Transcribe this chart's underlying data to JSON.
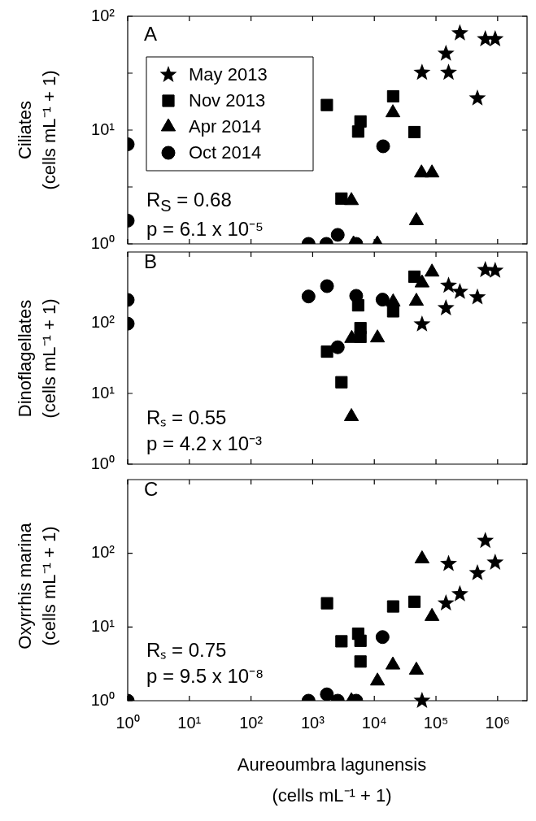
{
  "chart_data": [
    {
      "type": "scatter",
      "ylabel": "Ciliates\n(cells mL⁻¹ + 1)",
      "log": "xy",
      "legend": "top left",
      "tick_labels": "y",
      "xlim": [
        1,
        3000000
      ],
      "ylim": [
        1,
        100
      ],
      "xticks": [
        {
          "value": 1,
          "label": null
        },
        {
          "value": 10,
          "label": null
        },
        {
          "value": 100,
          "label": null
        },
        {
          "value": 1000,
          "label": null
        },
        {
          "value": 10000,
          "label": null
        },
        {
          "value": 100000,
          "label": null
        },
        {
          "value": 1000000,
          "label": null
        }
      ],
      "yticks": [
        {
          "value": 1,
          "label": "10⁰"
        },
        {
          "value": 3.162,
          "label": null
        },
        {
          "value": 10,
          "label": "10¹"
        },
        {
          "value": 31.62,
          "label": null
        },
        {
          "value": 100,
          "label": "10²"
        }
      ],
      "annotations": [
        "A",
        "R$_{S}$ = 0.68",
        "p = 6.1 x 10⁻⁵"
      ],
      "series": [
        {
          "name": "May 2013",
          "color": "#000000",
          "marker": "star",
          "x": [
            59400,
            145000,
            160000,
            244000,
            631000,
            912000,
            470000
          ],
          "values": [
            32,
            47,
            32,
            71,
            63,
            63,
            19
          ]
        },
        {
          "name": "Nov 2013",
          "color": "#000000",
          "marker": "square",
          "x": [
            1700,
            5960,
            5470,
            20200,
            44700,
            2930
          ],
          "values": [
            16.6,
            11.9,
            9.7,
            19.8,
            9.6,
            2.5
          ]
        },
        {
          "name": "Apr 2014",
          "color": "#000000",
          "marker": "triangle",
          "x": [
            4250,
            20000,
            58200,
            86100,
            48100,
            4600,
            11200
          ],
          "values": [
            2.4,
            14.2,
            4.2,
            4.2,
            1.6,
            1,
            1
          ]
        },
        {
          "name": "Oct 2014",
          "color": "#000000",
          "marker": "circle",
          "x": [
            1,
            1,
            13900,
            2550,
            857,
            1670,
            5080
          ],
          "values": [
            7.5,
            1.6,
            7.2,
            1.2,
            1,
            1,
            1
          ]
        }
      ]
    },
    {
      "type": "scatter",
      "ylabel": "Dinoflagellates\n(cells mL⁻¹ + 1)",
      "log": "xy",
      "tick_labels": "y",
      "xlim": [
        1,
        3000000
      ],
      "ylim": [
        1,
        1000
      ],
      "xticks": [
        {
          "value": 1,
          "label": null
        },
        {
          "value": 10,
          "label": null
        },
        {
          "value": 100,
          "label": null
        },
        {
          "value": 1000,
          "label": null
        },
        {
          "value": 10000,
          "label": null
        },
        {
          "value": 100000,
          "label": null
        },
        {
          "value": 1000000,
          "label": null
        }
      ],
      "yticks": [
        {
          "value": 1,
          "label": "10⁰"
        },
        {
          "value": 10,
          "label": "10¹"
        },
        {
          "value": 100,
          "label": "10²"
        }
      ],
      "annotations": [
        "B",
        "Rₛ = 0.55",
        "p = 4.2 x 10⁻³"
      ],
      "series": [
        {
          "color": "#000000",
          "marker": "star",
          "x": [
            631000,
            912000,
            160000,
            244000,
            470000,
            145000,
            59400
          ],
          "values": [
            558,
            545,
            335,
            274,
            229,
            161,
            95
          ]
        },
        {
          "color": "#000000",
          "marker": "square",
          "x": [
            44700,
            5470,
            5960,
            5960,
            20200,
            1710,
            2930
          ],
          "values": [
            448,
            176,
            84,
            63,
            145,
            39,
            14.4
          ]
        },
        {
          "color": "#000000",
          "marker": "triangle",
          "x": [
            86100,
            59400,
            48100,
            20200,
            11250,
            4300,
            4250
          ],
          "values": [
            520,
            365,
            201,
            197,
            61,
            60,
            4.7
          ]
        },
        {
          "color": "#000000",
          "marker": "circle",
          "x": [
            1,
            1,
            857,
            1710,
            5080,
            13600,
            2550
          ],
          "values": [
            210,
            97,
            235,
            329,
            240,
            212,
            45
          ]
        }
      ]
    },
    {
      "type": "scatter",
      "ylabel": "Oxyrrhis marina\n(cells mL⁻¹ + 1)",
      "xlabel": "Aureoumbra lagunensis\n(cells mL⁻¹ + 1)",
      "log": "xy",
      "xlim": [
        1,
        3000000
      ],
      "ylim": [
        1,
        1000
      ],
      "xticks": [
        {
          "value": 1,
          "label": "10⁰"
        },
        {
          "value": 10,
          "label": "10¹"
        },
        {
          "value": 100,
          "label": "10²"
        },
        {
          "value": 1000,
          "label": "10³"
        },
        {
          "value": 10000,
          "label": "10⁴"
        },
        {
          "value": 100000,
          "label": "10⁵"
        },
        {
          "value": 1000000,
          "label": "10⁶"
        }
      ],
      "yticks": [
        {
          "value": 1,
          "label": "10⁰"
        },
        {
          "value": 10,
          "label": "10¹"
        },
        {
          "value": 100,
          "label": "10²"
        }
      ],
      "annotations": [
        "C",
        "Rₛ = 0.75",
        "p = 9.5 x 10⁻⁸"
      ],
      "series": [
        {
          "color": "#000000",
          "marker": "star",
          "x": [
            631000,
            912000,
            160000,
            470000,
            244000,
            145000,
            59400
          ],
          "values": [
            148,
            75,
            72,
            54,
            28,
            21,
            1
          ]
        },
        {
          "color": "#000000",
          "marker": "triangle",
          "x": [
            59400,
            86100,
            20000,
            48100,
            11250,
            4250
          ],
          "values": [
            84,
            13.9,
            3.05,
            2.6,
            1.85,
            1
          ]
        },
        {
          "color": "#000000",
          "marker": "square",
          "x": [
            1710,
            20200,
            44700,
            5470,
            2930,
            5960,
            5960
          ],
          "values": [
            21,
            19,
            22,
            8.1,
            6.4,
            6.5,
            3.4
          ]
        },
        {
          "color": "#000000",
          "marker": "circle",
          "x": [
            1,
            857,
            1700,
            2550,
            5080,
            13600
          ],
          "values": [
            1,
            1,
            1.22,
            1,
            1,
            7.3
          ]
        }
      ]
    }
  ]
}
